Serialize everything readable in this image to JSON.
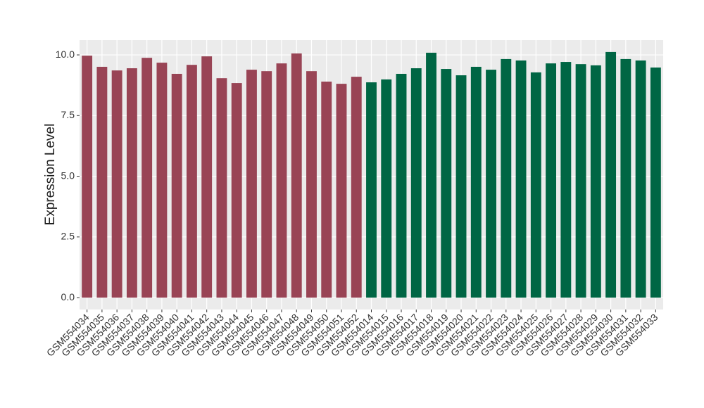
{
  "chart_data": {
    "type": "bar",
    "y_label": "Expression Level",
    "categories": [
      "GSM554034",
      "GSM554035",
      "GSM554036",
      "GSM554037",
      "GSM554038",
      "GSM554039",
      "GSM554040",
      "GSM554041",
      "GSM554042",
      "GSM554043",
      "GSM554044",
      "GSM554045",
      "GSM554046",
      "GSM554047",
      "GSM554048",
      "GSM554049",
      "GSM554050",
      "GSM554051",
      "GSM554052",
      "GSM554014",
      "GSM554015",
      "GSM554016",
      "GSM554017",
      "GSM554018",
      "GSM554019",
      "GSM554020",
      "GSM554021",
      "GSM554022",
      "GSM554023",
      "GSM554024",
      "GSM554025",
      "GSM554026",
      "GSM554027",
      "GSM554028",
      "GSM554029",
      "GSM554030",
      "GSM554031",
      "GSM554032",
      "GSM554033"
    ],
    "values": [
      9.97,
      9.51,
      9.36,
      9.45,
      9.88,
      9.68,
      9.22,
      9.59,
      9.94,
      9.04,
      8.84,
      9.39,
      9.33,
      9.65,
      10.06,
      9.33,
      8.9,
      8.81,
      9.1,
      8.87,
      8.99,
      9.22,
      9.45,
      10.09,
      9.42,
      9.16,
      9.51,
      9.39,
      9.83,
      9.77,
      9.28,
      9.65,
      9.71,
      9.62,
      9.57,
      10.12,
      9.83,
      9.77,
      9.48
    ],
    "colors": [
      "#994455",
      "#994455",
      "#994455",
      "#994455",
      "#994455",
      "#994455",
      "#994455",
      "#994455",
      "#994455",
      "#994455",
      "#994455",
      "#994455",
      "#994455",
      "#994455",
      "#994455",
      "#994455",
      "#994455",
      "#994455",
      "#994455",
      "#006644",
      "#006644",
      "#006644",
      "#006644",
      "#006644",
      "#006644",
      "#006644",
      "#006644",
      "#006644",
      "#006644",
      "#006644",
      "#006644",
      "#006644",
      "#006644",
      "#006644",
      "#006644",
      "#006644",
      "#006644",
      "#006644",
      "#006644"
    ],
    "ylim": [
      -0.49,
      10.61
    ],
    "yticks": [
      {
        "value": 0,
        "label": "0.0"
      },
      2.5,
      {
        "value": 5,
        "label": "5.0"
      },
      7.5,
      {
        "value": 10,
        "label": "10.0"
      }
    ],
    "grid": true
  }
}
